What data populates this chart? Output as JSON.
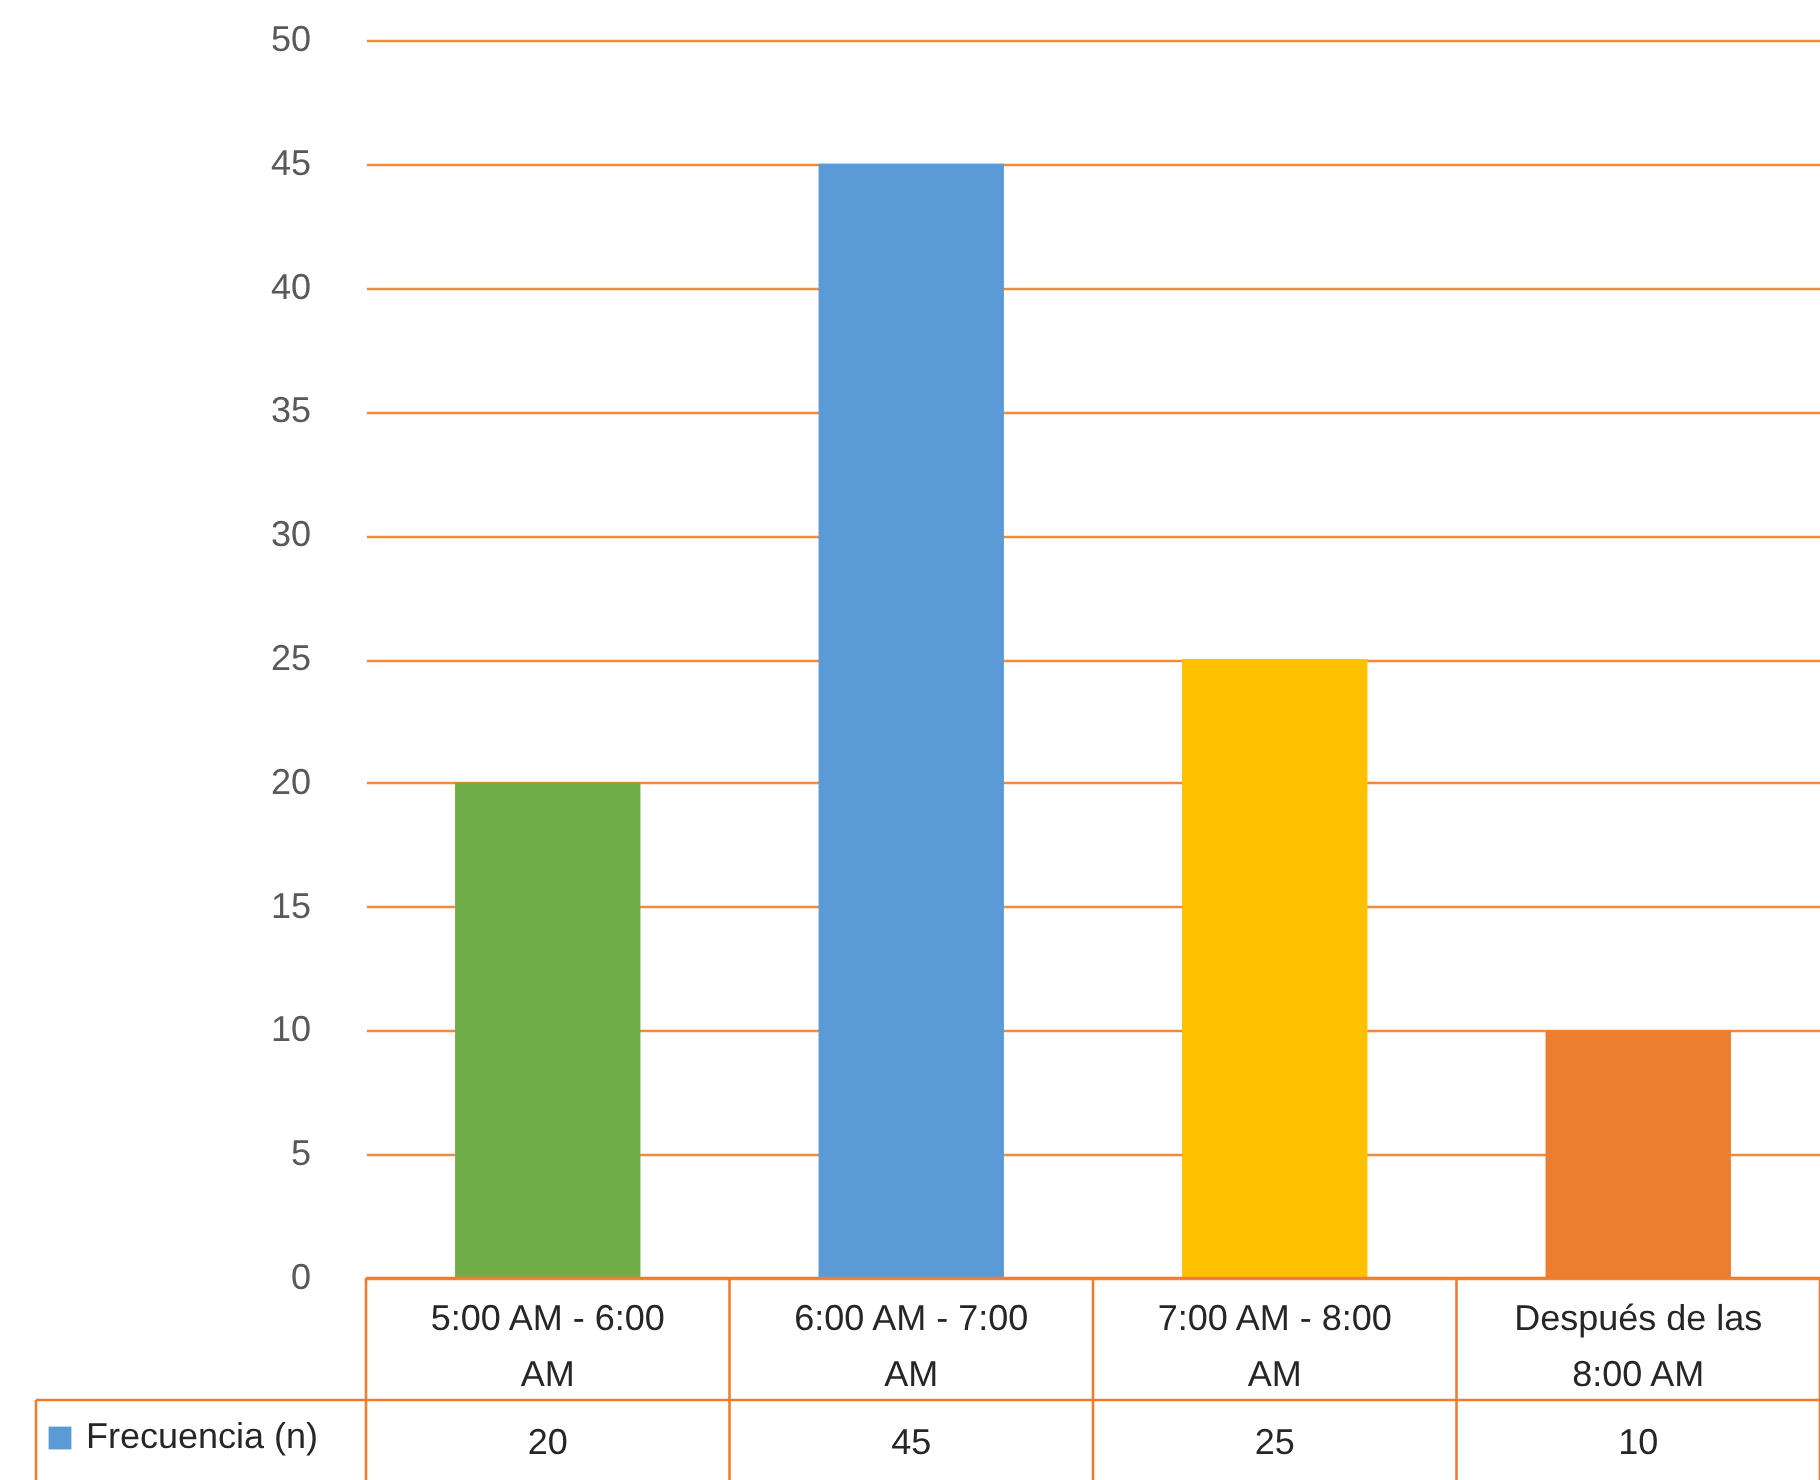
{
  "chart_data": {
    "type": "bar",
    "categories": [
      "5:00 AM - 6:00 AM",
      "6:00 AM - 7:00 AM",
      "7:00 AM - 8:00 AM",
      "Después de las 8:00 AM"
    ],
    "series": [
      {
        "name": "Frecuencia (n)",
        "values": [
          20,
          45,
          25,
          10
        ]
      }
    ],
    "colors": [
      "#70ad47",
      "#5b9bd5",
      "#ffc000",
      "#ed7d31"
    ],
    "ylim": [
      0,
      50
    ],
    "yticks": [
      0,
      5,
      10,
      15,
      20,
      25,
      30,
      35,
      40,
      45,
      50
    ],
    "grid": "y",
    "data_labels": true,
    "legend": "bottom left"
  }
}
